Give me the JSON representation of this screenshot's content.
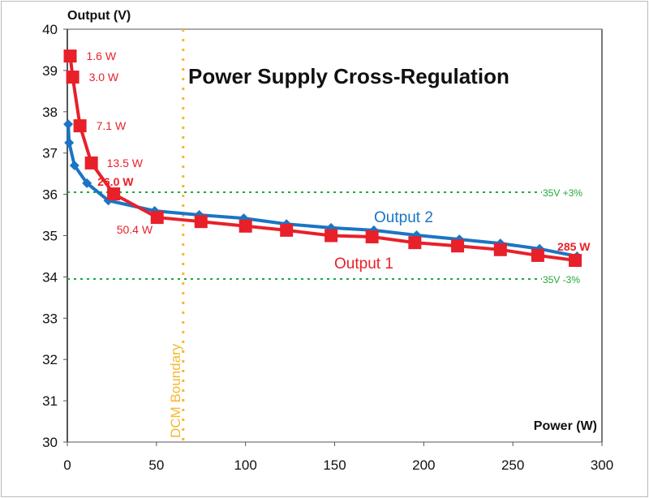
{
  "chart_data": {
    "type": "line",
    "title": "Power Supply Cross-Regulation",
    "xlabel": "Power (W)",
    "ylabel": "Output (V)",
    "xlim": [
      0,
      300
    ],
    "ylim": [
      30,
      40
    ],
    "xticks": [
      0,
      50,
      100,
      150,
      200,
      250,
      300
    ],
    "yticks": [
      30,
      31,
      32,
      33,
      34,
      35,
      36,
      37,
      38,
      39,
      40
    ],
    "grid": false,
    "series": [
      {
        "name": "Output 1",
        "color": "#e8202a",
        "marker": "square",
        "x": [
          1.6,
          3.0,
          7.1,
          13.5,
          26.0,
          50.4,
          75,
          100,
          123,
          148,
          171,
          195,
          219,
          243,
          264,
          285
        ],
        "y": [
          39.35,
          38.84,
          37.66,
          36.76,
          36.01,
          35.44,
          35.34,
          35.23,
          35.13,
          35.0,
          34.97,
          34.83,
          34.75,
          34.66,
          34.52,
          34.4
        ]
      },
      {
        "name": "Output 2",
        "color": "#1a75c4",
        "marker": "diamond",
        "x": [
          0.5,
          1,
          4,
          11,
          23,
          49,
          74,
          99,
          123,
          148,
          172,
          196,
          220,
          243,
          265,
          286
        ],
        "y": [
          37.7,
          37.25,
          36.7,
          36.27,
          35.85,
          35.6,
          35.5,
          35.42,
          35.28,
          35.19,
          35.13,
          35.01,
          34.91,
          34.81,
          34.68,
          34.5
        ]
      }
    ],
    "point_labels": [
      {
        "text": "1.6 W",
        "x": 1.6,
        "y": 39.35
      },
      {
        "text": "3.0 W",
        "x": 3.0,
        "y": 38.84
      },
      {
        "text": "7.1 W",
        "x": 7.1,
        "y": 37.66
      },
      {
        "text": "13.5 W",
        "x": 13.5,
        "y": 36.76
      },
      {
        "text": "26.0 W",
        "x": 26.0,
        "y": 36.01
      },
      {
        "text": "50.4 W",
        "x": 50.4,
        "y": 35.44
      },
      {
        "text": "285 W",
        "x": 285,
        "y": 34.4
      }
    ],
    "reference_lines": [
      {
        "label": "35V +3%",
        "y": 36.05,
        "color": "#22a83a"
      },
      {
        "label": "35V -3%",
        "y": 33.95,
        "color": "#22a83a"
      }
    ],
    "vertical_line": {
      "label": "DCM Boundary",
      "x": 65,
      "color": "#f5b731"
    }
  }
}
